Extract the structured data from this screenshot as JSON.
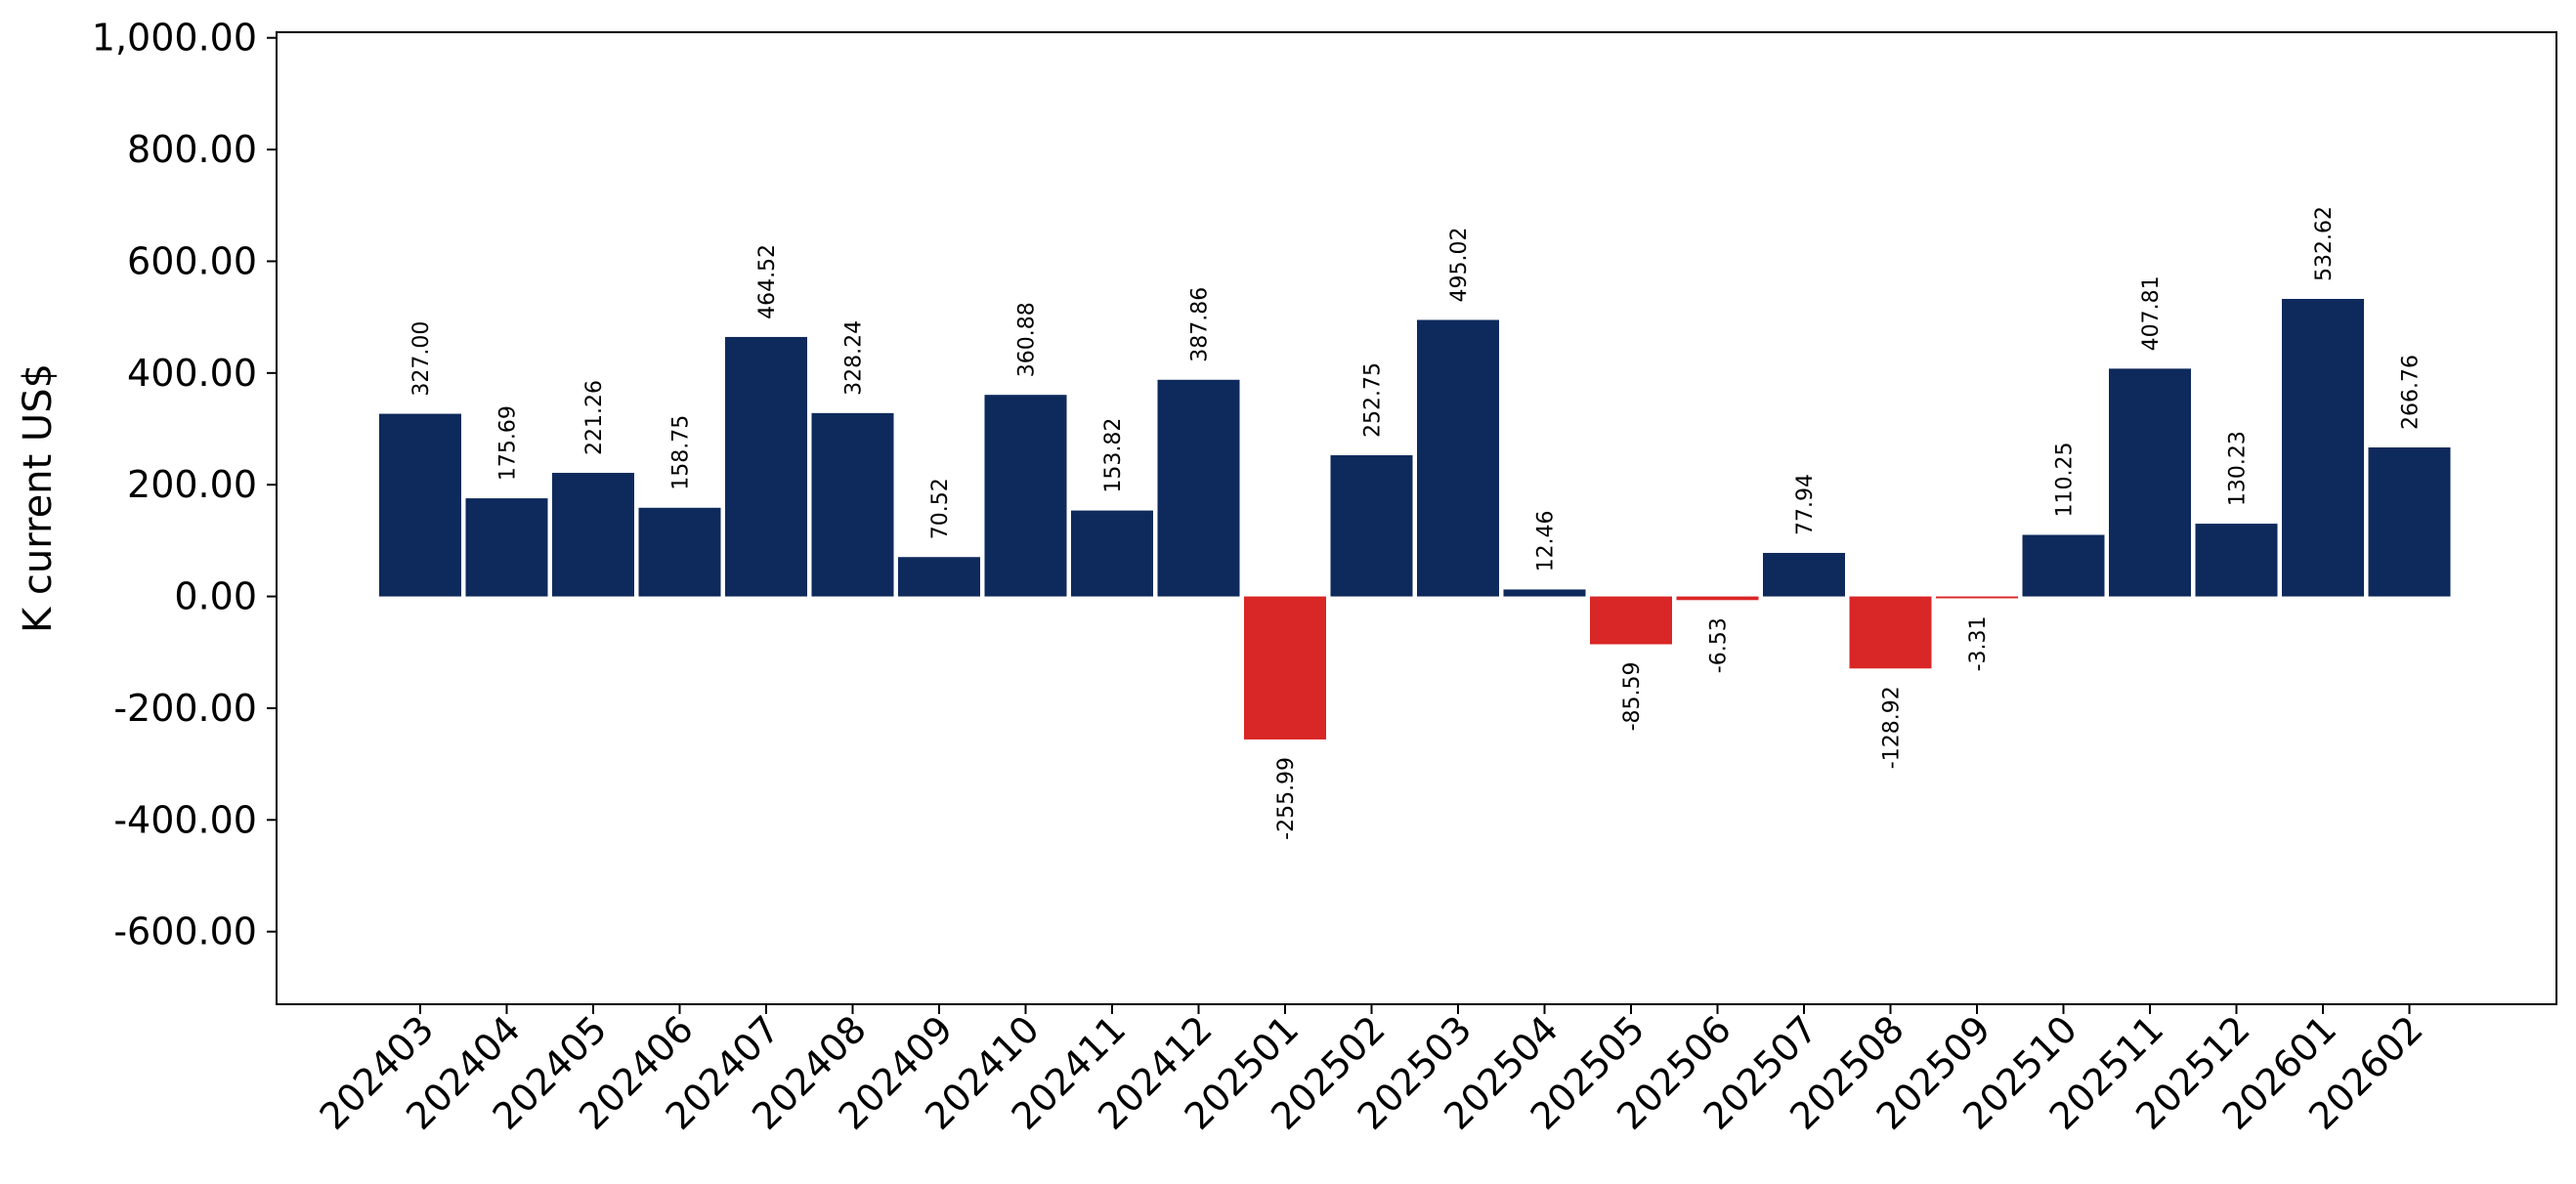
{
  "chart_data": {
    "type": "bar",
    "title": "",
    "xlabel": "",
    "ylabel": "K current US$",
    "ylim": [
      -730,
      1010
    ],
    "yticks": [
      -600,
      -400,
      -200,
      0,
      200,
      400,
      600,
      800,
      1000
    ],
    "ytick_labels": [
      "-600.00",
      "-400.00",
      "-200.00",
      "0.00",
      "200.00",
      "400.00",
      "600.00",
      "800.00",
      "1,000.00"
    ],
    "categories": [
      "202403",
      "202404",
      "202405",
      "202406",
      "202407",
      "202408",
      "202409",
      "202410",
      "202411",
      "202412",
      "202501",
      "202502",
      "202503",
      "202504",
      "202505",
      "202506",
      "202507",
      "202508",
      "202509",
      "202510",
      "202511",
      "202512",
      "202601",
      "202602"
    ],
    "values": [
      327.0,
      175.69,
      221.26,
      158.75,
      464.52,
      328.24,
      70.52,
      360.88,
      153.82,
      387.86,
      -255.99,
      252.75,
      495.02,
      12.46,
      -85.59,
      -6.53,
      77.94,
      -128.92,
      -3.31,
      110.25,
      407.81,
      130.23,
      532.62,
      266.76
    ],
    "value_labels": [
      "327.00",
      "175.69",
      "221.26",
      "158.75",
      "464.52",
      "328.24",
      "70.52",
      "360.88",
      "153.82",
      "387.86",
      "-255.99",
      "252.75",
      "495.02",
      "12.46",
      "-85.59",
      "-6.53",
      "77.94",
      "-128.92",
      "-3.31",
      "110.25",
      "407.81",
      "130.23",
      "532.62",
      "266.76"
    ],
    "colors": {
      "positive": "#0e2a5c",
      "negative": "#d92626"
    },
    "grid": false,
    "legend": "none"
  }
}
